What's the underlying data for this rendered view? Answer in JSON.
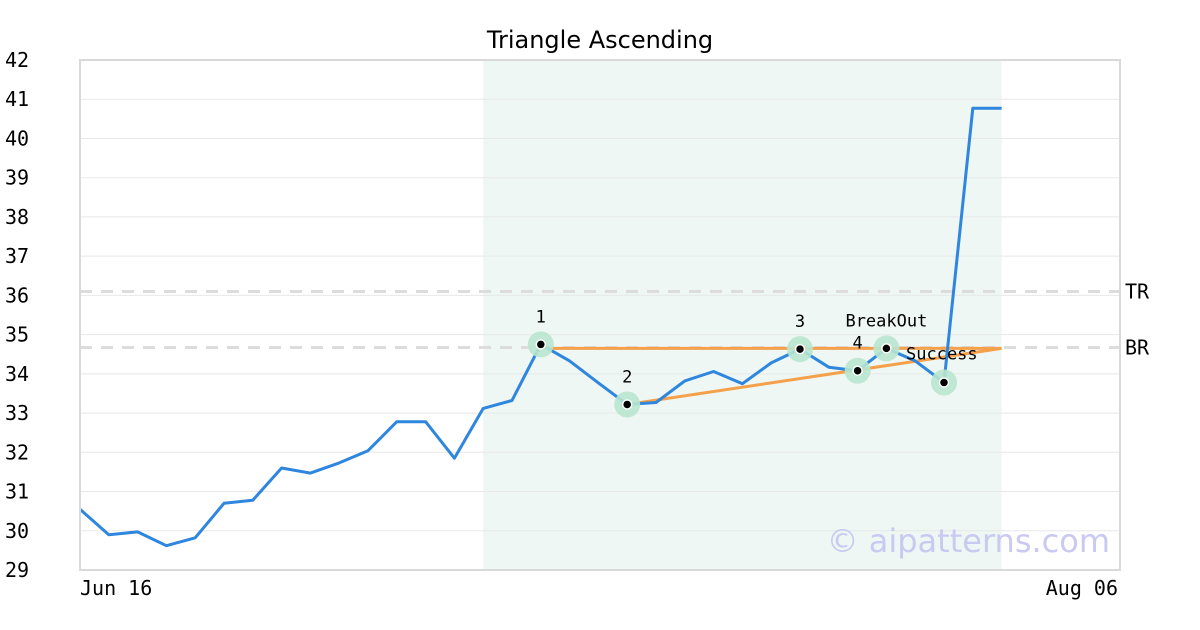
{
  "chart_data": {
    "type": "line",
    "title": "Triangle Ascending",
    "xlabel": "",
    "ylabel": "",
    "ylim": [
      29,
      42
    ],
    "yticks": [
      29,
      30,
      31,
      32,
      33,
      34,
      35,
      36,
      37,
      38,
      39,
      40,
      41,
      42
    ],
    "x_tick_labels": [
      "Jun 16",
      "Aug 06"
    ],
    "grid": "horizontal",
    "series": [
      {
        "values": [
          30.55,
          29.9,
          29.97,
          29.62,
          29.82,
          30.7,
          30.78,
          31.6,
          31.47,
          31.73,
          32.04,
          32.78,
          32.78,
          31.85,
          33.12,
          33.32,
          34.75,
          34.33,
          33.77,
          33.22,
          33.27,
          33.82,
          34.06,
          33.75,
          34.28,
          34.63,
          34.17,
          34.08,
          34.65,
          34.33,
          33.78,
          40.77,
          40.77
        ]
      }
    ],
    "highlight_region": {
      "from_index": 14,
      "to_index": 32
    },
    "pattern_points": [
      {
        "index": 16,
        "value": 34.75,
        "label": "1"
      },
      {
        "index": 19,
        "value": 33.22,
        "label": "2"
      },
      {
        "index": 25,
        "value": 34.63,
        "label": "3"
      },
      {
        "index": 27,
        "value": 34.08,
        "label": "4"
      },
      {
        "index": 28,
        "value": 34.65,
        "label": "BreakOut"
      },
      {
        "index": 30,
        "value": 33.78,
        "label": "Success"
      }
    ],
    "trend_lines": [
      {
        "from_index": 16,
        "from_value": 34.65,
        "to_index": 32,
        "to_value": 34.65
      },
      {
        "from_index": 19,
        "from_value": 33.22,
        "to_index": 32,
        "to_value": 34.65
      }
    ],
    "reference_lines": [
      {
        "value": 36.1,
        "label": "TR"
      },
      {
        "value": 34.67,
        "label": "BR"
      }
    ],
    "watermark": "© aipatterns.com",
    "colors": {
      "line": "#2e86de",
      "trend": "#f5a04a",
      "highlight": "#eef7f3",
      "marker_halo": "#b8e6cf",
      "reference": "#dcdcdc",
      "grid": "#e8e8e8"
    }
  }
}
